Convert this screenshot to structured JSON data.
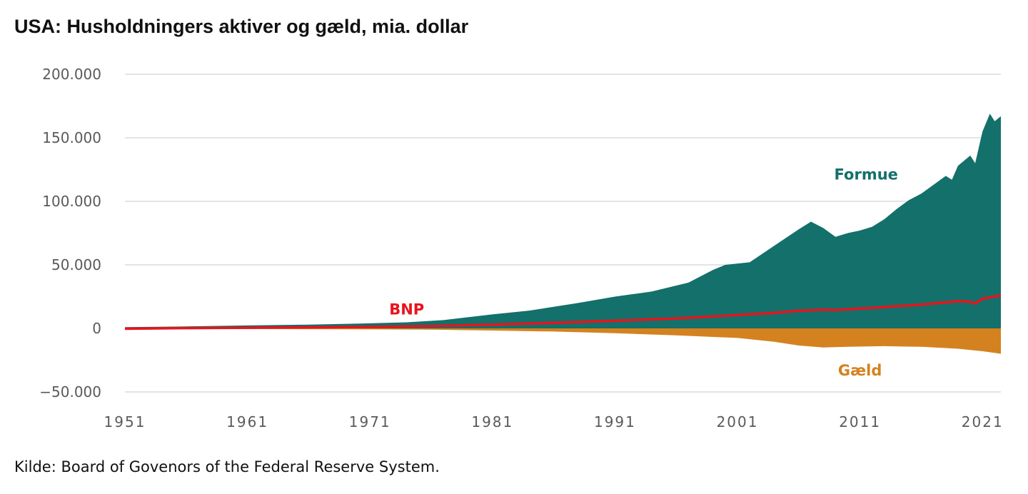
{
  "title": "USA: Husholdningers aktiver og gæld, mia. dollar",
  "source": "Kilde: Board of Govenors of the Federal Reserve System.",
  "colors": {
    "formue": "#13706a",
    "gaeld": "#d4821f",
    "bnp": "#e8141c",
    "grid": "#dcdcdc",
    "tick": "#5a5a5a"
  },
  "chart_data": {
    "type": "area",
    "xlim": [
      1951,
      2022.5
    ],
    "ylim": [
      -50000,
      200000
    ],
    "x_ticks": [
      1951,
      1961,
      1971,
      1981,
      1991,
      2001,
      2011,
      2021
    ],
    "x_tick_labels": [
      "1951",
      "1961",
      "1971",
      "1981",
      "1991",
      "2001",
      "2011",
      "2021"
    ],
    "y_ticks": [
      -50000,
      0,
      50000,
      100000,
      150000,
      200000
    ],
    "y_tick_labels": [
      "−50.000",
      "0",
      "50.000",
      "100.000",
      "150.000",
      "200.000"
    ],
    "grid": true,
    "series": [
      {
        "name": "Formue",
        "kind": "area",
        "points": [
          [
            1951,
            1000
          ],
          [
            1956,
            1500
          ],
          [
            1961,
            2300
          ],
          [
            1966,
            3000
          ],
          [
            1971,
            4000
          ],
          [
            1974,
            4800
          ],
          [
            1977,
            6500
          ],
          [
            1981,
            11000
          ],
          [
            1984,
            14000
          ],
          [
            1988,
            20000
          ],
          [
            1991,
            25000
          ],
          [
            1994,
            29000
          ],
          [
            1997,
            36000
          ],
          [
            1999,
            46000
          ],
          [
            2000,
            50000
          ],
          [
            2002,
            52000
          ],
          [
            2004,
            65000
          ],
          [
            2006,
            78000
          ],
          [
            2007,
            84000
          ],
          [
            2008,
            79000
          ],
          [
            2009,
            72000
          ],
          [
            2010,
            75000
          ],
          [
            2011,
            77000
          ],
          [
            2012,
            80000
          ],
          [
            2013,
            86000
          ],
          [
            2014,
            94000
          ],
          [
            2015,
            101000
          ],
          [
            2016,
            106000
          ],
          [
            2017,
            113000
          ],
          [
            2018,
            120000
          ],
          [
            2018.5,
            117000
          ],
          [
            2019,
            128000
          ],
          [
            2020,
            136000
          ],
          [
            2020.4,
            130000
          ],
          [
            2021,
            155000
          ],
          [
            2021.6,
            169000
          ],
          [
            2022,
            163000
          ],
          [
            2022.5,
            167000
          ]
        ]
      },
      {
        "name": "Gæld",
        "kind": "area",
        "points": [
          [
            1951,
            -200
          ],
          [
            1961,
            -500
          ],
          [
            1971,
            -800
          ],
          [
            1976,
            -1000
          ],
          [
            1981,
            -1700
          ],
          [
            1986,
            -2500
          ],
          [
            1991,
            -3800
          ],
          [
            1996,
            -5500
          ],
          [
            2001,
            -7500
          ],
          [
            2004,
            -10500
          ],
          [
            2006,
            -13500
          ],
          [
            2008,
            -15000
          ],
          [
            2010,
            -14500
          ],
          [
            2013,
            -14000
          ],
          [
            2016,
            -14500
          ],
          [
            2019,
            -16000
          ],
          [
            2021,
            -18000
          ],
          [
            2022.5,
            -20000
          ]
        ]
      },
      {
        "name": "BNP",
        "kind": "line",
        "points": [
          [
            1951,
            -300
          ],
          [
            1956,
            200
          ],
          [
            1961,
            500
          ],
          [
            1966,
            800
          ],
          [
            1971,
            1100
          ],
          [
            1976,
            1800
          ],
          [
            1981,
            3000
          ],
          [
            1986,
            4300
          ],
          [
            1991,
            6000
          ],
          [
            1996,
            7800
          ],
          [
            2001,
            10500
          ],
          [
            2004,
            12200
          ],
          [
            2006,
            13800
          ],
          [
            2008,
            14700
          ],
          [
            2009,
            14400
          ],
          [
            2010,
            15000
          ],
          [
            2012,
            16100
          ],
          [
            2014,
            17500
          ],
          [
            2016,
            18700
          ],
          [
            2018,
            20500
          ],
          [
            2019,
            21400
          ],
          [
            2020,
            21000
          ],
          [
            2020.4,
            19500
          ],
          [
            2021,
            23300
          ],
          [
            2022.5,
            26000
          ]
        ]
      }
    ],
    "annotations": [
      {
        "text": "Formue",
        "x": 2011.5,
        "y": 117000,
        "color": "#13706a"
      },
      {
        "text": "BNP",
        "x": 1974,
        "y": 11000,
        "color": "#e8141c"
      },
      {
        "text": "Gæld",
        "x": 2011,
        "y": -37000,
        "color": "#d4821f"
      }
    ]
  }
}
